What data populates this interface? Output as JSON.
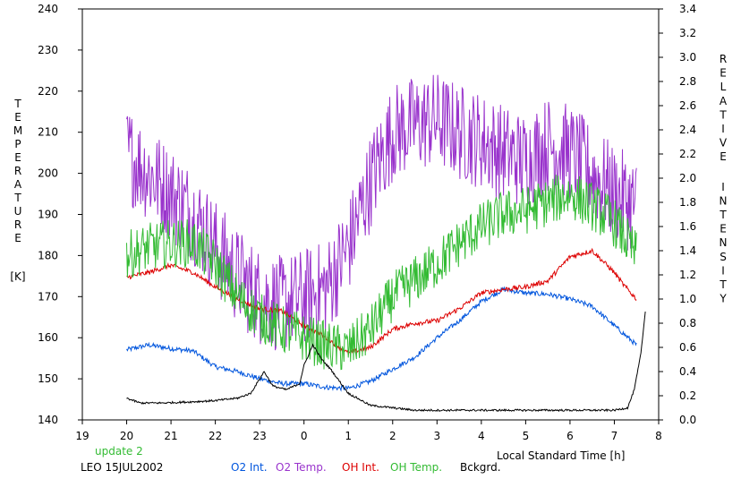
{
  "chart_data": {
    "type": "line",
    "xlabel": "Local Standard Time [h]",
    "y_left_label_letters": [
      "T",
      "E",
      "M",
      "P",
      "E",
      "R",
      "A",
      "T",
      "U",
      "R",
      "E"
    ],
    "y_left_unit": "[K]",
    "y_right_label_letters": [
      "R",
      "E",
      "L",
      "A",
      "T",
      "I",
      "V",
      "E",
      "I",
      "N",
      "T",
      "E",
      "N",
      "S",
      "I",
      "T",
      "Y"
    ],
    "x_ticks": [
      "19",
      "20",
      "21",
      "22",
      "23",
      "0",
      "1",
      "2",
      "3",
      "4",
      "5",
      "6",
      "7",
      "8"
    ],
    "x_range_hours": [
      19,
      32
    ],
    "y_left_ticks": [
      "140",
      "150",
      "160",
      "170",
      "180",
      "190",
      "200",
      "210",
      "220",
      "230",
      "240"
    ],
    "y_left_range": [
      140,
      240
    ],
    "y_right_ticks": [
      "0.0",
      "0.2",
      "0.4",
      "0.6",
      "0.8",
      "1.0",
      "1.2",
      "1.4",
      "1.6",
      "1.8",
      "2.0",
      "2.2",
      "2.4",
      "2.6",
      "2.8",
      "3.0",
      "3.2",
      "3.4"
    ],
    "y_right_range": [
      0,
      3.4
    ],
    "update_note": "update 2",
    "site_date": "LEO 15JUL2002",
    "series": [
      {
        "name": "O2 Int.",
        "axis": "right",
        "color": "#0055dd",
        "noise": 0.02,
        "x": [
          20.0,
          20.5,
          21.0,
          21.5,
          22.0,
          22.5,
          23.0,
          23.5,
          24.0,
          24.5,
          25.0,
          25.5,
          26.0,
          26.5,
          27.0,
          27.5,
          28.0,
          28.5,
          29.0,
          29.5,
          30.0,
          30.5,
          31.0,
          31.5
        ],
        "y": [
          0.58,
          0.62,
          0.59,
          0.57,
          0.44,
          0.4,
          0.34,
          0.3,
          0.3,
          0.27,
          0.26,
          0.32,
          0.42,
          0.52,
          0.68,
          0.82,
          0.98,
          1.08,
          1.05,
          1.04,
          1.0,
          0.94,
          0.78,
          0.62
        ]
      },
      {
        "name": "O2 Temp.",
        "axis": "left",
        "color": "#9933cc",
        "noise": 12,
        "x": [
          20.0,
          20.5,
          21.0,
          21.5,
          22.0,
          22.5,
          23.0,
          23.5,
          24.0,
          24.5,
          25.0,
          25.5,
          26.0,
          26.5,
          27.0,
          27.5,
          28.0,
          28.5,
          29.0,
          29.5,
          30.0,
          30.5,
          31.0,
          31.5
        ],
        "y": [
          205,
          200,
          195,
          190,
          182,
          175,
          170,
          168,
          170,
          172,
          182,
          198,
          210,
          212,
          213,
          210,
          208,
          205,
          203,
          207,
          205,
          200,
          195,
          192
        ]
      },
      {
        "name": "OH Int.",
        "axis": "right",
        "color": "#dd0000",
        "noise": 0.02,
        "x": [
          20.0,
          20.5,
          21.0,
          21.5,
          22.0,
          22.5,
          23.0,
          23.5,
          24.0,
          24.5,
          25.0,
          25.5,
          26.0,
          26.5,
          27.0,
          27.5,
          28.0,
          28.5,
          29.0,
          29.5,
          30.0,
          30.5,
          31.0,
          31.2,
          31.5
        ],
        "y": [
          1.18,
          1.22,
          1.28,
          1.22,
          1.1,
          1.0,
          0.92,
          0.9,
          0.78,
          0.68,
          0.55,
          0.6,
          0.75,
          0.8,
          0.82,
          0.92,
          1.05,
          1.08,
          1.1,
          1.15,
          1.35,
          1.4,
          1.22,
          1.12,
          1.0
        ]
      },
      {
        "name": "OH Temp.",
        "axis": "left",
        "color": "#33bb33",
        "noise": 6,
        "x": [
          20.0,
          20.5,
          21.0,
          21.5,
          22.0,
          22.5,
          23.0,
          23.5,
          24.0,
          24.5,
          25.0,
          25.5,
          26.0,
          26.5,
          27.0,
          27.5,
          28.0,
          28.5,
          29.0,
          29.5,
          30.0,
          30.5,
          31.0,
          31.5
        ],
        "y": [
          180,
          182,
          183,
          183,
          178,
          170,
          165,
          162,
          160,
          158,
          157,
          162,
          170,
          174,
          178,
          183,
          187,
          190,
          191,
          193,
          195,
          192,
          188,
          180
        ]
      },
      {
        "name": "Bckgrd.",
        "axis": "right",
        "color": "#000000",
        "noise": 0.008,
        "x": [
          20.0,
          20.3,
          20.8,
          21.5,
          22.0,
          22.5,
          22.8,
          23.1,
          23.3,
          23.6,
          23.9,
          24.0,
          24.2,
          24.4,
          24.6,
          25.0,
          25.5,
          26.5,
          27.5,
          28.5,
          29.5,
          30.5,
          31.0,
          31.3,
          31.45,
          31.6,
          31.7
        ],
        "y": [
          0.18,
          0.14,
          0.14,
          0.15,
          0.16,
          0.18,
          0.22,
          0.4,
          0.28,
          0.25,
          0.3,
          0.45,
          0.62,
          0.5,
          0.42,
          0.22,
          0.12,
          0.08,
          0.08,
          0.08,
          0.08,
          0.08,
          0.08,
          0.1,
          0.25,
          0.55,
          0.9
        ]
      }
    ]
  }
}
